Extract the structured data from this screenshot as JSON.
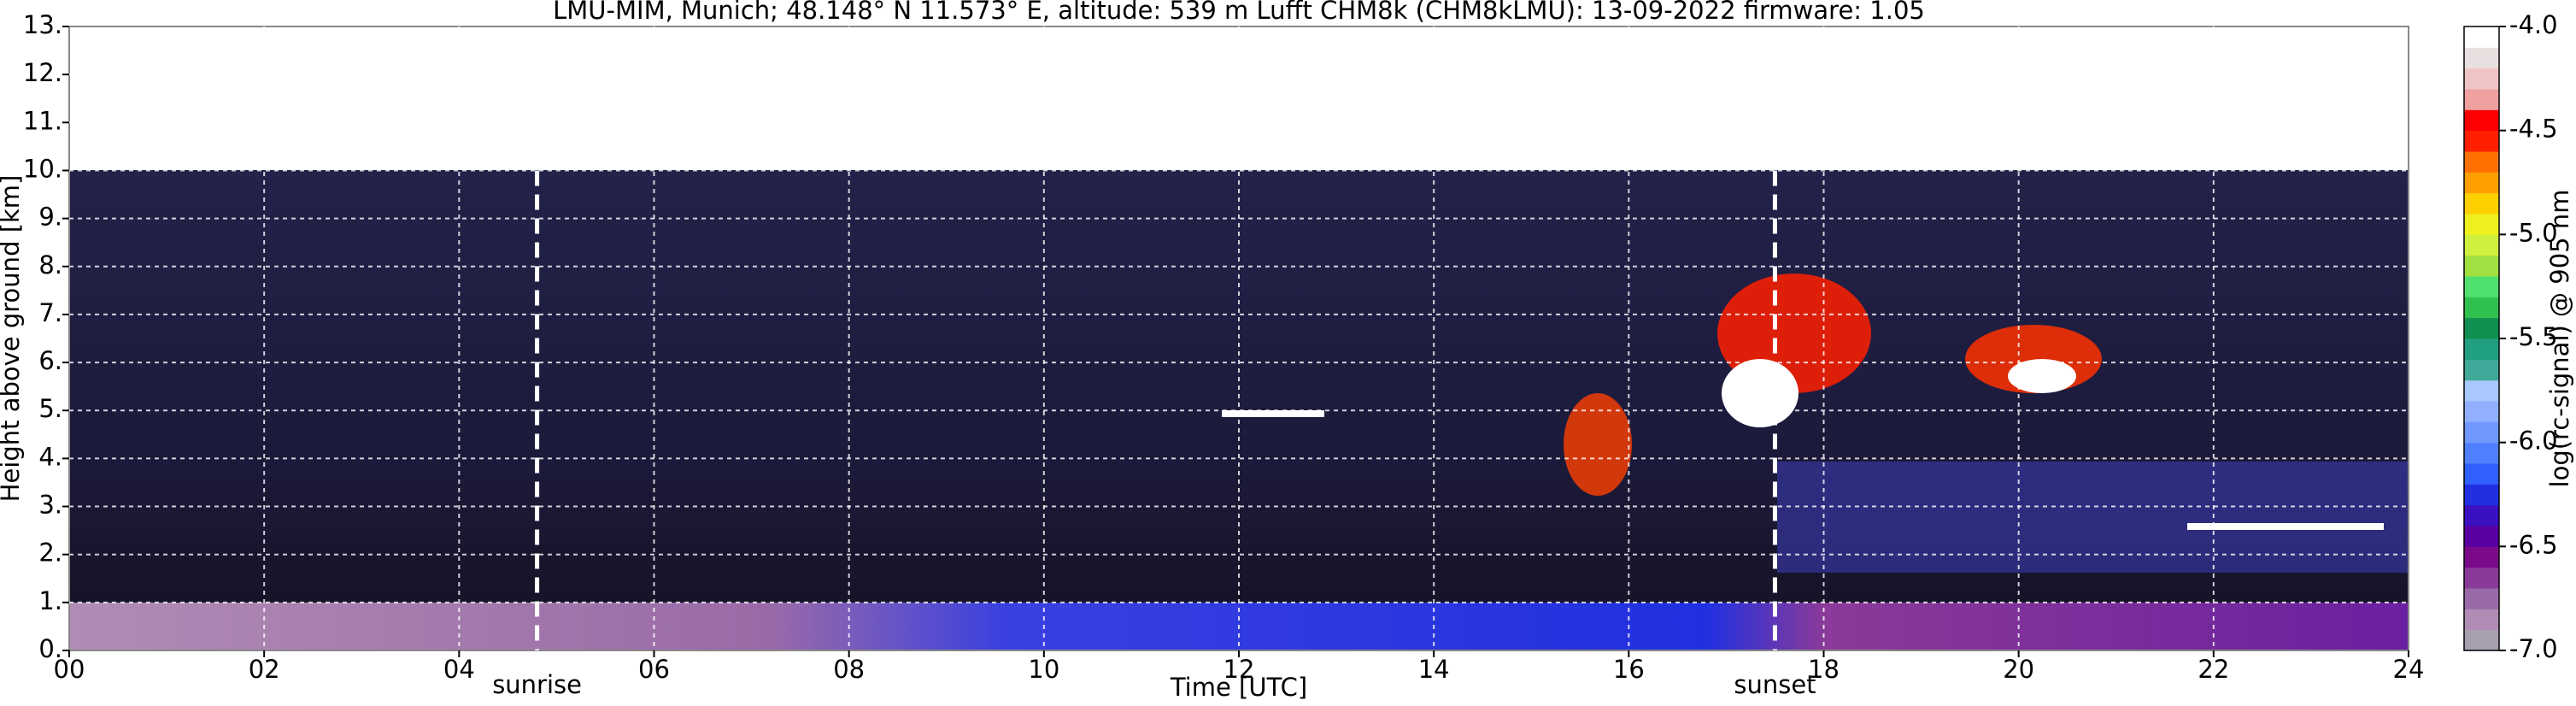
{
  "chart_data": {
    "type": "heatmap",
    "title": "LMU-MIM, Munich; 48.148° N 11.573° E, altitude: 539 m    Lufft CHM8k (CHM8kLMU): 13-09-2022    firmware: 1.05",
    "x_label": "Time [UTC]",
    "y_label": "Height above ground [km]",
    "xlim": [
      0,
      24
    ],
    "xticks": [
      {
        "value": 0,
        "label": "00"
      },
      {
        "value": 2,
        "label": "02"
      },
      {
        "value": 4,
        "label": "04"
      },
      {
        "value": 6,
        "label": "06"
      },
      {
        "value": 8,
        "label": "08"
      },
      {
        "value": 10,
        "label": "10"
      },
      {
        "value": 12,
        "label": "12"
      },
      {
        "value": 14,
        "label": "14"
      },
      {
        "value": 16,
        "label": "16"
      },
      {
        "value": 18,
        "label": "18"
      },
      {
        "value": 20,
        "label": "20"
      },
      {
        "value": 22,
        "label": "22"
      },
      {
        "value": 24,
        "label": "24"
      }
    ],
    "ylim": [
      0,
      13
    ],
    "yticks": [
      {
        "value": 0,
        "label": "0."
      },
      {
        "value": 1,
        "label": "1."
      },
      {
        "value": 2,
        "label": "2."
      },
      {
        "value": 3,
        "label": "3."
      },
      {
        "value": 4,
        "label": "4."
      },
      {
        "value": 5,
        "label": "5."
      },
      {
        "value": 6,
        "label": "6."
      },
      {
        "value": 7,
        "label": "7."
      },
      {
        "value": 8,
        "label": "8."
      },
      {
        "value": 9,
        "label": "9."
      },
      {
        "value": 10,
        "label": "10."
      },
      {
        "value": 11,
        "label": "11."
      },
      {
        "value": 12,
        "label": "12."
      },
      {
        "value": 13,
        "label": "13."
      }
    ],
    "grid": true,
    "annotations": [
      {
        "text": "sunrise",
        "x": 4.8
      },
      {
        "text": "sunset",
        "x": 17.5
      }
    ],
    "colorbar": {
      "label": "log(rc-signal) @ 905 nm",
      "lim": [
        -7,
        -4
      ],
      "ticks": [
        {
          "value": -7,
          "label": "-7.0"
        },
        {
          "value": -6.5,
          "label": "-6.5"
        },
        {
          "value": -6,
          "label": "-6.0"
        },
        {
          "value": -5.5,
          "label": "-5.5"
        },
        {
          "value": -5,
          "label": "-5.0"
        },
        {
          "value": -4.5,
          "label": "-4.5"
        },
        {
          "value": -4,
          "label": "-4.0"
        }
      ],
      "colors": [
        "#a89fae",
        "#b08cb4",
        "#9a6aa8",
        "#8a3a98",
        "#7a0a8a",
        "#5a00a0",
        "#3a10c0",
        "#2030e0",
        "#3060ff",
        "#5080ff",
        "#7098ff",
        "#90b0ff",
        "#a8c8ff",
        "#40a898",
        "#20a080",
        "#109050",
        "#30c050",
        "#50e070",
        "#a0e040",
        "#d0f040",
        "#f0f020",
        "#ffd000",
        "#ffa000",
        "#ff7000",
        "#ff2000",
        "#ff0000",
        "#f0a0a0",
        "#f0c4c4",
        "#e8e0e0",
        "#ffffff"
      ]
    }
  }
}
